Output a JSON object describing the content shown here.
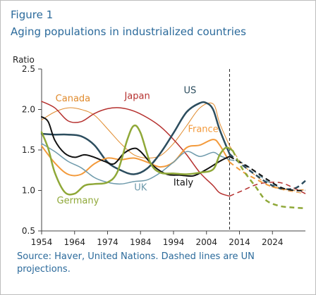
{
  "figure": {
    "label": "Figure 1",
    "title": "Aging populations in industrialized countries",
    "source": "Source: Haver, United Nations. Dashed lines are UN projections."
  },
  "chart_data": {
    "type": "line",
    "ylabel": "Ratio",
    "xlim": [
      1954,
      2034
    ],
    "ylim": [
      0.5,
      2.5
    ],
    "x_ticks": [
      "1954",
      "1964",
      "1974",
      "1984",
      "1994",
      "2004",
      "2014",
      "2024"
    ],
    "y_ticks": [
      "0.5",
      "1.0",
      "1.5",
      "2.0",
      "2.5"
    ],
    "projection_start": 2011,
    "grid": false,
    "series": [
      {
        "name": "Canada",
        "color": "#e08a2c",
        "width": 1,
        "actual": [
          [
            1954,
            1.87
          ],
          [
            1958,
            1.97
          ],
          [
            1962,
            2.02
          ],
          [
            1966,
            2.0
          ],
          [
            1970,
            1.93
          ],
          [
            1974,
            1.76
          ],
          [
            1978,
            1.58
          ],
          [
            1982,
            1.44
          ],
          [
            1986,
            1.4
          ],
          [
            1990,
            1.43
          ],
          [
            1994,
            1.58
          ],
          [
            1998,
            1.8
          ],
          [
            2002,
            2.02
          ],
          [
            2006,
            2.07
          ],
          [
            2008,
            1.83
          ],
          [
            2011,
            1.55
          ]
        ],
        "projection": [
          [
            2011,
            1.55
          ],
          [
            2015,
            1.32
          ],
          [
            2019,
            1.18
          ],
          [
            2023,
            1.06
          ],
          [
            2027,
            1.01
          ],
          [
            2031,
            0.98
          ],
          [
            2034,
            0.96
          ]
        ]
      },
      {
        "name": "Japan",
        "color": "#b5302e",
        "width": 1.5,
        "actual": [
          [
            1954,
            2.1
          ],
          [
            1958,
            2.02
          ],
          [
            1962,
            1.86
          ],
          [
            1966,
            1.85
          ],
          [
            1970,
            1.95
          ],
          [
            1974,
            2.01
          ],
          [
            1978,
            2.02
          ],
          [
            1982,
            1.98
          ],
          [
            1986,
            1.9
          ],
          [
            1990,
            1.79
          ],
          [
            1994,
            1.63
          ],
          [
            1998,
            1.44
          ],
          [
            2002,
            1.22
          ],
          [
            2006,
            1.06
          ],
          [
            2008,
            0.97
          ],
          [
            2011,
            0.93
          ]
        ],
        "projection": [
          [
            2011,
            0.93
          ],
          [
            2015,
            1.0
          ],
          [
            2019,
            1.07
          ],
          [
            2023,
            1.1
          ],
          [
            2027,
            1.09
          ],
          [
            2031,
            1.02
          ],
          [
            2034,
            0.96
          ]
        ]
      },
      {
        "name": "US",
        "color": "#2c4d5e",
        "width": 2.5,
        "actual": [
          [
            1954,
            1.7
          ],
          [
            1958,
            1.69
          ],
          [
            1962,
            1.69
          ],
          [
            1966,
            1.67
          ],
          [
            1970,
            1.56
          ],
          [
            1974,
            1.35
          ],
          [
            1978,
            1.25
          ],
          [
            1982,
            1.2
          ],
          [
            1986,
            1.27
          ],
          [
            1990,
            1.46
          ],
          [
            1994,
            1.71
          ],
          [
            1998,
            1.97
          ],
          [
            2002,
            2.08
          ],
          [
            2004,
            2.08
          ],
          [
            2006,
            2.0
          ],
          [
            2008,
            1.75
          ],
          [
            2011,
            1.45
          ]
        ],
        "projection": [
          [
            2011,
            1.45
          ],
          [
            2015,
            1.31
          ],
          [
            2019,
            1.19
          ],
          [
            2023,
            1.08
          ],
          [
            2027,
            1.02
          ],
          [
            2031,
            1.03
          ],
          [
            2034,
            1.12
          ]
        ]
      },
      {
        "name": "France",
        "color": "#f39a3b",
        "width": 2,
        "actual": [
          [
            1954,
            1.55
          ],
          [
            1958,
            1.34
          ],
          [
            1962,
            1.2
          ],
          [
            1966,
            1.2
          ],
          [
            1970,
            1.33
          ],
          [
            1974,
            1.4
          ],
          [
            1978,
            1.38
          ],
          [
            1982,
            1.4
          ],
          [
            1986,
            1.35
          ],
          [
            1990,
            1.29
          ],
          [
            1994,
            1.35
          ],
          [
            1998,
            1.53
          ],
          [
            2002,
            1.56
          ],
          [
            2006,
            1.63
          ],
          [
            2008,
            1.56
          ],
          [
            2011,
            1.35
          ]
        ],
        "projection": [
          [
            2011,
            1.35
          ],
          [
            2015,
            1.23
          ],
          [
            2019,
            1.14
          ],
          [
            2023,
            1.06
          ],
          [
            2027,
            1.02
          ],
          [
            2031,
            1.0
          ],
          [
            2034,
            1.01
          ]
        ]
      },
      {
        "name": "UK",
        "color": "#6e9aab",
        "width": 1.5,
        "actual": [
          [
            1954,
            1.58
          ],
          [
            1958,
            1.48
          ],
          [
            1962,
            1.36
          ],
          [
            1966,
            1.28
          ],
          [
            1970,
            1.16
          ],
          [
            1974,
            1.1
          ],
          [
            1978,
            1.08
          ],
          [
            1982,
            1.11
          ],
          [
            1986,
            1.13
          ],
          [
            1990,
            1.22
          ],
          [
            1994,
            1.35
          ],
          [
            1998,
            1.48
          ],
          [
            2002,
            1.42
          ],
          [
            2006,
            1.47
          ],
          [
            2008,
            1.43
          ],
          [
            2011,
            1.38
          ]
        ],
        "projection": [
          [
            2011,
            1.38
          ],
          [
            2015,
            1.34
          ],
          [
            2019,
            1.22
          ],
          [
            2023,
            1.1
          ],
          [
            2027,
            1.03
          ],
          [
            2031,
            1.0
          ],
          [
            2034,
            1.0
          ]
        ]
      },
      {
        "name": "Italy",
        "color": "#111111",
        "width": 2,
        "actual": [
          [
            1954,
            1.91
          ],
          [
            1956,
            1.85
          ],
          [
            1958,
            1.62
          ],
          [
            1961,
            1.46
          ],
          [
            1964,
            1.41
          ],
          [
            1967,
            1.44
          ],
          [
            1970,
            1.41
          ],
          [
            1973,
            1.36
          ],
          [
            1976,
            1.33
          ],
          [
            1979,
            1.46
          ],
          [
            1982,
            1.52
          ],
          [
            1984,
            1.48
          ],
          [
            1988,
            1.3
          ],
          [
            1992,
            1.2
          ],
          [
            1996,
            1.19
          ],
          [
            2000,
            1.18
          ],
          [
            2004,
            1.26
          ],
          [
            2008,
            1.36
          ],
          [
            2011,
            1.42
          ]
        ],
        "projection": [
          [
            2011,
            1.42
          ],
          [
            2015,
            1.33
          ],
          [
            2019,
            1.23
          ],
          [
            2023,
            1.12
          ],
          [
            2027,
            1.03
          ],
          [
            2031,
            1.0
          ],
          [
            2034,
            1.0
          ]
        ]
      },
      {
        "name": "Germany",
        "color": "#8fa838",
        "width": 2.5,
        "actual": [
          [
            1954,
            1.72
          ],
          [
            1956,
            1.52
          ],
          [
            1958,
            1.22
          ],
          [
            1961,
            0.98
          ],
          [
            1964,
            0.96
          ],
          [
            1967,
            1.06
          ],
          [
            1970,
            1.08
          ],
          [
            1974,
            1.1
          ],
          [
            1977,
            1.23
          ],
          [
            1980,
            1.63
          ],
          [
            1982,
            1.8
          ],
          [
            1984,
            1.71
          ],
          [
            1987,
            1.34
          ],
          [
            1990,
            1.22
          ],
          [
            1994,
            1.21
          ],
          [
            1998,
            1.2
          ],
          [
            2002,
            1.22
          ],
          [
            2006,
            1.26
          ],
          [
            2008,
            1.44
          ],
          [
            2010,
            1.53
          ],
          [
            2012,
            1.49
          ]
        ],
        "projection": [
          [
            2012,
            1.49
          ],
          [
            2015,
            1.26
          ],
          [
            2019,
            1.04
          ],
          [
            2022,
            0.88
          ],
          [
            2026,
            0.81
          ],
          [
            2030,
            0.79
          ],
          [
            2034,
            0.78
          ]
        ]
      }
    ],
    "labels": [
      {
        "text": "Canada",
        "series": "Canada",
        "x": 1963.5,
        "y": 2.1
      },
      {
        "text": "Japan",
        "series": "Japan",
        "x": 1983,
        "y": 2.13
      },
      {
        "text": "US",
        "series": "US",
        "x": 1999,
        "y": 2.2
      },
      {
        "text": "France",
        "series": "France",
        "x": 2003,
        "y": 1.72
      },
      {
        "text": "UK",
        "series": "UK",
        "x": 1984,
        "y": 1.0
      },
      {
        "text": "Italy",
        "series": "Italy",
        "x": 1997,
        "y": 1.06
      },
      {
        "text": "Germany",
        "series": "Germany",
        "x": 1965,
        "y": 0.84
      }
    ]
  }
}
